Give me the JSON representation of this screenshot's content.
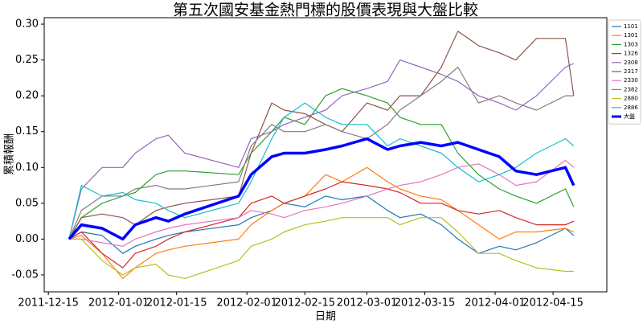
{
  "chart_data": {
    "type": "line",
    "title": "第五次國安基金熱門標的股價表現與大盤比較",
    "xlabel": "日期",
    "ylabel": "累積報酬",
    "x": [
      "2011-12-20",
      "2011-12-23",
      "2011-12-28",
      "2012-01-02",
      "2012-01-05",
      "2012-01-10",
      "2012-01-13",
      "2012-01-17",
      "2012-01-30",
      "2012-02-02",
      "2012-02-07",
      "2012-02-10",
      "2012-02-15",
      "2012-02-20",
      "2012-02-24",
      "2012-03-01",
      "2012-03-06",
      "2012-03-09",
      "2012-03-14",
      "2012-03-19",
      "2012-03-23",
      "2012-03-28",
      "2012-04-02",
      "2012-04-06",
      "2012-04-11",
      "2012-04-18",
      "2012-04-20"
    ],
    "xlim": [
      "2011-12-14",
      "2012-04-28"
    ],
    "xticks": [
      "2011-12-15",
      "2012-01-01",
      "2012-01-15",
      "2012-02-01",
      "2012-02-15",
      "2012-03-01",
      "2012-03-15",
      "2012-04-01",
      "2012-04-15"
    ],
    "ylim": [
      -0.0736,
      0.309
    ],
    "yticks": [
      {
        "value": -0.05,
        "label": "-0.05"
      },
      {
        "value": 0,
        "label": "0.00"
      },
      {
        "value": 0.05,
        "label": "0.05"
      },
      {
        "value": 0.1,
        "label": "0.10"
      },
      {
        "value": 0.15,
        "label": "0.15"
      },
      {
        "value": 0.2,
        "label": "0.20"
      },
      {
        "value": 0.25,
        "label": "0.25"
      },
      {
        "value": 0.3,
        "label": "0.30"
      }
    ],
    "legend": "upper right",
    "series": [
      {
        "name": "1101",
        "color": "#1f77b4",
        "values": [
          0,
          0.01,
          0.005,
          -0.02,
          -0.01,
          0,
          0.005,
          0.01,
          0.02,
          0.03,
          0.04,
          0.05,
          0.045,
          0.06,
          0.055,
          0.06,
          0.04,
          0.03,
          0.035,
          0.02,
          0,
          -0.02,
          -0.01,
          -0.015,
          -0.005,
          0.015,
          0.005
        ]
      },
      {
        "name": "1301",
        "color": "#ff7f0e",
        "values": [
          0,
          0.005,
          -0.02,
          -0.055,
          -0.04,
          -0.02,
          -0.015,
          -0.01,
          0,
          0.02,
          0.04,
          0.05,
          0.06,
          0.09,
          0.08,
          0.1,
          0.08,
          0.07,
          0.06,
          0.055,
          0.04,
          0.02,
          0,
          0.01,
          0.01,
          0.015,
          0.01
        ]
      },
      {
        "name": "1303",
        "color": "#2ca02c",
        "values": [
          0,
          0.03,
          0.05,
          0.06,
          0.065,
          0.09,
          0.095,
          0.095,
          0.09,
          0.12,
          0.15,
          0.17,
          0.16,
          0.2,
          0.21,
          0.2,
          0.19,
          0.17,
          0.16,
          0.16,
          0.12,
          0.09,
          0.07,
          0.06,
          0.05,
          0.07,
          0.045
        ]
      },
      {
        "name": "1326",
        "color": "#d62728",
        "values": [
          0,
          0.01,
          -0.02,
          -0.04,
          -0.02,
          -0.01,
          0,
          0.01,
          0.03,
          0.05,
          0.06,
          0.05,
          0.06,
          0.07,
          0.08,
          0.075,
          0.07,
          0.065,
          0.05,
          0.05,
          0.04,
          0.035,
          0.04,
          0.03,
          0.02,
          0.02,
          0.025
        ]
      },
      {
        "name": "2308",
        "color": "#9467bd",
        "values": [
          0,
          0.07,
          0.1,
          0.1,
          0.12,
          0.14,
          0.145,
          0.12,
          0.1,
          0.14,
          0.15,
          0.16,
          0.17,
          0.18,
          0.2,
          0.21,
          0.22,
          0.25,
          0.24,
          0.23,
          0.22,
          0.2,
          0.19,
          0.18,
          0.2,
          0.24,
          0.245
        ]
      },
      {
        "name": "2317",
        "color": "#8c564b",
        "values": [
          0,
          0.03,
          0.035,
          0.03,
          0.02,
          0.04,
          0.045,
          0.05,
          0.06,
          0.12,
          0.19,
          0.18,
          0.175,
          0.16,
          0.15,
          0.19,
          0.18,
          0.2,
          0.2,
          0.24,
          0.29,
          0.27,
          0.26,
          0.25,
          0.28,
          0.28,
          0.2
        ]
      },
      {
        "name": "2330",
        "color": "#e377c2",
        "values": [
          0,
          0,
          -0.005,
          -0.01,
          0,
          0.01,
          0.015,
          0.02,
          0.03,
          0.04,
          0.035,
          0.03,
          0.04,
          0.045,
          0.05,
          0.06,
          0.07,
          0.075,
          0.08,
          0.09,
          0.1,
          0.105,
          0.09,
          0.075,
          0.08,
          0.11,
          0.1
        ]
      },
      {
        "name": "2382",
        "color": "#7f7f7f",
        "values": [
          0,
          0.04,
          0.06,
          0.06,
          0.07,
          0.075,
          0.07,
          0.07,
          0.08,
          0.13,
          0.16,
          0.15,
          0.15,
          0.16,
          0.15,
          0.14,
          0.16,
          0.18,
          0.2,
          0.22,
          0.24,
          0.19,
          0.2,
          0.19,
          0.18,
          0.2,
          0.2
        ]
      },
      {
        "name": "2880",
        "color": "#bcbd22",
        "values": [
          0,
          0,
          -0.03,
          -0.05,
          -0.04,
          -0.035,
          -0.05,
          -0.055,
          -0.03,
          -0.01,
          0,
          0.01,
          0.02,
          0.025,
          0.03,
          0.03,
          0.03,
          0.02,
          0.03,
          0.03,
          0.01,
          -0.02,
          -0.02,
          -0.03,
          -0.04,
          -0.045,
          -0.045
        ]
      },
      {
        "name": "2886",
        "color": "#17becf",
        "values": [
          0,
          0.075,
          0.06,
          0.065,
          0.055,
          0.05,
          0.04,
          0.03,
          0.05,
          0.08,
          0.14,
          0.17,
          0.19,
          0.17,
          0.16,
          0.16,
          0.13,
          0.14,
          0.13,
          0.12,
          0.1,
          0.08,
          0.09,
          0.1,
          0.12,
          0.14,
          0.13
        ]
      },
      {
        "name": "大盤",
        "color": "#0000ff",
        "values": [
          0,
          0.02,
          0.015,
          0,
          0.02,
          0.03,
          0.025,
          0.035,
          0.06,
          0.09,
          0.115,
          0.12,
          0.12,
          0.125,
          0.13,
          0.14,
          0.125,
          0.13,
          0.135,
          0.13,
          0.135,
          0.125,
          0.115,
          0.095,
          0.09,
          0.1,
          0.075
        ]
      }
    ]
  }
}
